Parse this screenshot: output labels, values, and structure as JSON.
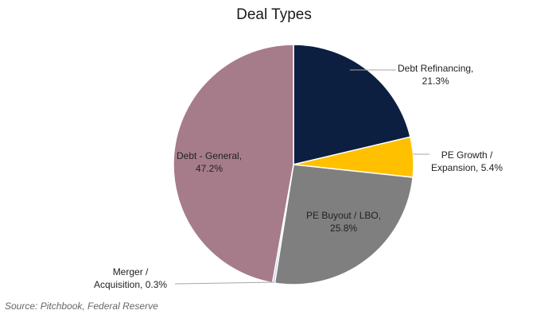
{
  "chart_data": {
    "type": "pie",
    "title": "Deal Types",
    "categories": [
      "Debt Refinancing",
      "PE Growth / Expansion",
      "PE Buyout / LBO",
      "Merger / Acquisition",
      "Debt - General"
    ],
    "values": [
      21.3,
      5.4,
      25.8,
      0.3,
      47.2
    ],
    "unit": "%",
    "colors": [
      "#0d1f40",
      "#ffc000",
      "#7f7f7f",
      "#b4c7e7",
      "#a67c8a"
    ],
    "labels": [
      {
        "line1": "Debt Refinancing,",
        "line2": "21.3%"
      },
      {
        "line1": "PE Growth /",
        "line2": "Expansion, 5.4%"
      },
      {
        "line1": "PE Buyout / LBO,",
        "line2": "25.8%"
      },
      {
        "line1": "Merger /",
        "line2": "Acquisition, 0.3%"
      },
      {
        "line1": "Debt - General,",
        "line2": "47.2%"
      }
    ],
    "start_angle": "12 o'clock, clockwise",
    "legend": "none (data labels)"
  },
  "footer": {
    "source": "Source: Pitchbook, Federal Reserve"
  }
}
